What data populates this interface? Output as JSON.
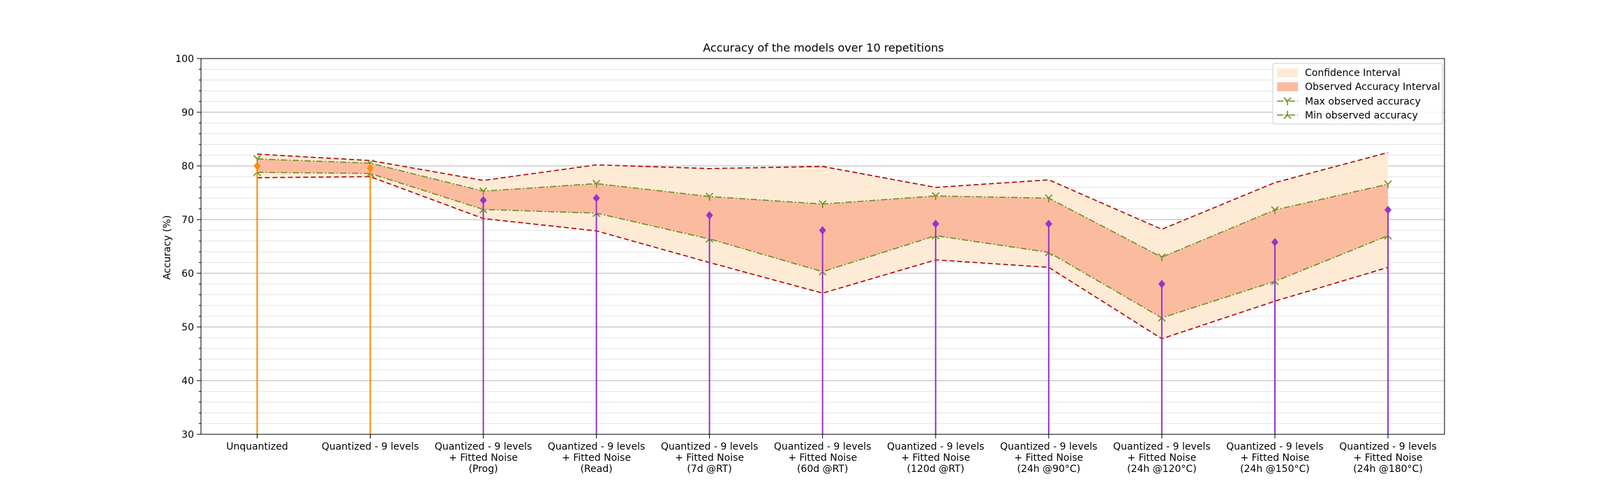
{
  "chart_data": {
    "type": "line",
    "title": "Accuracy of the models over 10 repetitions",
    "xlabel": "",
    "ylabel": "Accuracy (%)",
    "ylim": [
      30,
      100
    ],
    "yticks": [
      "30",
      "40",
      "50",
      "60",
      "70",
      "80",
      "90",
      "100"
    ],
    "grid": "horizontal, major and minor",
    "legend_position": "top-right",
    "categories": [
      "Unquantized",
      "Quantized - 9 levels",
      "Quantized - 9 levels\n+ Fitted Noise\n(Prog)",
      "Quantized - 9 levels\n+ Fitted Noise\n(Read)",
      "Quantized - 9 levels\n+ Fitted Noise\n(7d @RT)",
      "Quantized - 9 levels\n+ Fitted Noise\n(60d @RT)",
      "Quantized - 9 levels\n+ Fitted Noise\n(120d @RT)",
      "Quantized - 9 levels\n+ Fitted Noise\n(24h @90°C)",
      "Quantized - 9 levels\n+ Fitted Noise\n(24h @120°C)",
      "Quantized - 9 levels\n+ Fitted Noise\n(24h @150°C)",
      "Quantized - 9 levels\n+ Fitted Noise\n(24h @180°C)"
    ],
    "mean_accuracy": [
      80.0,
      79.6,
      73.6,
      74.0,
      70.8,
      68.0,
      69.2,
      69.2,
      58.0,
      65.8,
      71.8
    ],
    "mean_colors": [
      "#ff8c00",
      "#ff8c00",
      "#9932cc",
      "#9932cc",
      "#9932cc",
      "#9932cc",
      "#9932cc",
      "#9932cc",
      "#9932cc",
      "#9932cc",
      "#9932cc"
    ],
    "series": [
      {
        "name": "Confidence Interval",
        "upper": [
          82.2,
          81.0,
          77.3,
          80.2,
          79.5,
          79.9,
          76.0,
          77.4,
          68.2,
          76.9,
          82.5
        ],
        "lower": [
          77.8,
          78.0,
          70.2,
          67.9,
          62.0,
          56.3,
          62.5,
          61.1,
          47.8,
          54.8,
          61.1
        ],
        "color": "#fdebd6",
        "edge_color": "#b30000"
      },
      {
        "name": "Observed Accuracy Interval",
        "color": "#fbbb9f"
      },
      {
        "name": "Max observed accuracy",
        "values": [
          81.3,
          80.5,
          75.3,
          76.7,
          74.3,
          72.9,
          74.4,
          74.0,
          63.0,
          71.8,
          76.6
        ],
        "color": "#6b8e23"
      },
      {
        "name": "Min observed accuracy",
        "values": [
          78.8,
          78.6,
          71.9,
          71.2,
          66.4,
          60.3,
          67.0,
          63.9,
          51.7,
          58.5,
          67.0
        ],
        "color": "#6b8e23"
      }
    ]
  }
}
